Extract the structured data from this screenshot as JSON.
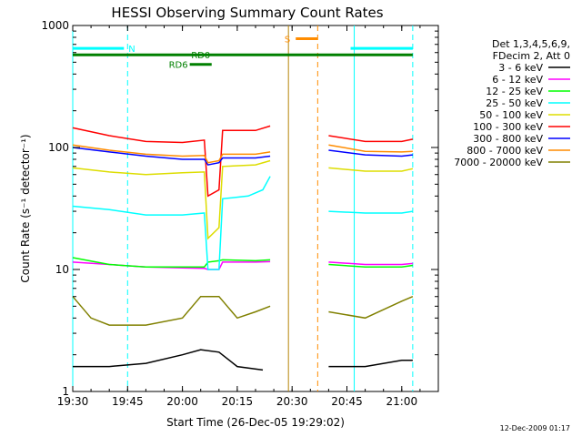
{
  "chart_data": {
    "type": "line",
    "title": "HESSI Observing Summary Count Rates",
    "xlabel": "Start Time (26-Dec-05 19:29:02)",
    "ylabel": "Count Rate (s⁻¹ detector⁻¹)",
    "yscale": "log",
    "ylim": [
      1,
      1000
    ],
    "xlim": [
      "19:30",
      "21:10"
    ],
    "x_ticks": [
      "19:30",
      "19:45",
      "20:00",
      "20:15",
      "20:30",
      "20:45",
      "21:00"
    ],
    "y_ticks": [
      "1",
      "10",
      "100",
      "1000"
    ],
    "legend_header": [
      "Det 1,3,4,5,6,9,",
      "FDecim 2, Att 0"
    ],
    "legend_position": "right",
    "footer": "12-Dec-2009 01:17",
    "series": [
      {
        "name": "3 - 6 keV",
        "color": "#000000",
        "points": [
          [
            "19:30",
            1.6
          ],
          [
            "19:40",
            1.6
          ],
          [
            "19:50",
            1.7
          ],
          [
            "20:00",
            2.0
          ],
          [
            "20:05",
            2.2
          ],
          [
            "20:10",
            2.1
          ],
          [
            "20:15",
            1.6
          ],
          [
            "20:22",
            1.5
          ],
          [
            "20:40",
            1.6
          ],
          [
            "20:50",
            1.6
          ],
          [
            "21:00",
            1.8
          ],
          [
            "21:03",
            1.8
          ]
        ]
      },
      {
        "name": "6 - 12 keV",
        "color": "#ff00ff",
        "points": [
          [
            "19:30",
            11.5
          ],
          [
            "19:40",
            11.0
          ],
          [
            "19:50",
            10.5
          ],
          [
            "20:00",
            10.3
          ],
          [
            "20:06",
            10.2
          ],
          [
            "20:07",
            10.0
          ],
          [
            "20:10",
            10.0
          ],
          [
            "20:11",
            11.5
          ],
          [
            "20:20",
            11.5
          ],
          [
            "20:24",
            11.6
          ],
          [
            "20:40",
            11.5
          ],
          [
            "20:50",
            11.0
          ],
          [
            "21:00",
            11.0
          ],
          [
            "21:03",
            11.2
          ]
        ]
      },
      {
        "name": "12 - 25 keV",
        "color": "#00ff00",
        "points": [
          [
            "19:30",
            12.5
          ],
          [
            "19:40",
            11.0
          ],
          [
            "19:50",
            10.5
          ],
          [
            "20:00",
            10.5
          ],
          [
            "20:06",
            10.5
          ],
          [
            "20:07",
            11.5
          ],
          [
            "20:10",
            11.8
          ],
          [
            "20:11",
            12.0
          ],
          [
            "20:20",
            11.8
          ],
          [
            "20:24",
            12.0
          ],
          [
            "20:40",
            11.0
          ],
          [
            "20:50",
            10.5
          ],
          [
            "21:00",
            10.5
          ],
          [
            "21:03",
            10.8
          ]
        ]
      },
      {
        "name": "25 - 50 keV",
        "color": "#00ffff",
        "points": [
          [
            "19:30",
            33
          ],
          [
            "19:40",
            31
          ],
          [
            "19:50",
            28
          ],
          [
            "20:00",
            28
          ],
          [
            "20:06",
            29
          ],
          [
            "20:07",
            10.0
          ],
          [
            "20:10",
            10.0
          ],
          [
            "20:11",
            38
          ],
          [
            "20:18",
            40
          ],
          [
            "20:22",
            45
          ],
          [
            "20:24",
            58
          ],
          [
            "20:40",
            30
          ],
          [
            "20:50",
            29
          ],
          [
            "21:00",
            29
          ],
          [
            "21:03",
            30
          ]
        ]
      },
      {
        "name": "50 - 100 keV",
        "color": "#dddd00",
        "points": [
          [
            "19:30",
            68
          ],
          [
            "19:40",
            63
          ],
          [
            "19:50",
            60
          ],
          [
            "20:00",
            62
          ],
          [
            "20:06",
            63
          ],
          [
            "20:07",
            18
          ],
          [
            "20:10",
            22
          ],
          [
            "20:11",
            70
          ],
          [
            "20:20",
            72
          ],
          [
            "20:24",
            78
          ],
          [
            "20:40",
            68
          ],
          [
            "20:50",
            64
          ],
          [
            "21:00",
            64
          ],
          [
            "21:03",
            67
          ]
        ]
      },
      {
        "name": "100 - 300 keV",
        "color": "#ff0000",
        "points": [
          [
            "19:30",
            145
          ],
          [
            "19:40",
            125
          ],
          [
            "19:50",
            112
          ],
          [
            "20:00",
            110
          ],
          [
            "20:06",
            115
          ],
          [
            "20:07",
            40
          ],
          [
            "20:10",
            45
          ],
          [
            "20:11",
            138
          ],
          [
            "20:20",
            138
          ],
          [
            "20:24",
            150
          ],
          [
            "20:40",
            125
          ],
          [
            "20:50",
            112
          ],
          [
            "21:00",
            112
          ],
          [
            "21:03",
            117
          ]
        ]
      },
      {
        "name": "300 - 800 keV",
        "color": "#0000ff",
        "points": [
          [
            "19:30",
            100
          ],
          [
            "19:40",
            92
          ],
          [
            "19:50",
            85
          ],
          [
            "20:00",
            80
          ],
          [
            "20:06",
            80
          ],
          [
            "20:07",
            72
          ],
          [
            "20:10",
            75
          ],
          [
            "20:11",
            82
          ],
          [
            "20:20",
            82
          ],
          [
            "20:24",
            85
          ],
          [
            "20:40",
            95
          ],
          [
            "20:50",
            87
          ],
          [
            "21:00",
            85
          ],
          [
            "21:03",
            87
          ]
        ]
      },
      {
        "name": "800 - 7000 keV",
        "color": "#ff8c00",
        "points": [
          [
            "19:30",
            105
          ],
          [
            "19:40",
            95
          ],
          [
            "19:50",
            88
          ],
          [
            "20:00",
            85
          ],
          [
            "20:06",
            86
          ],
          [
            "20:07",
            75
          ],
          [
            "20:10",
            78
          ],
          [
            "20:11",
            88
          ],
          [
            "20:20",
            88
          ],
          [
            "20:24",
            92
          ],
          [
            "20:40",
            105
          ],
          [
            "20:50",
            93
          ],
          [
            "21:00",
            92
          ],
          [
            "21:03",
            93
          ]
        ]
      },
      {
        "name": "7000 - 20000 keV",
        "color": "#808000",
        "points": [
          [
            "19:30",
            6.0
          ],
          [
            "19:35",
            4.0
          ],
          [
            "19:40",
            3.5
          ],
          [
            "19:50",
            3.5
          ],
          [
            "20:00",
            4.0
          ],
          [
            "20:05",
            6.0
          ],
          [
            "20:10",
            6.0
          ],
          [
            "20:15",
            4.0
          ],
          [
            "20:20",
            4.5
          ],
          [
            "20:24",
            5.0
          ],
          [
            "20:40",
            4.5
          ],
          [
            "20:50",
            4.0
          ],
          [
            "21:00",
            5.5
          ],
          [
            "21:03",
            6.0
          ]
        ]
      }
    ],
    "annotations": [
      {
        "label": "N",
        "color": "#00ffff",
        "segments": [
          [
            "19:30",
            "19:44"
          ],
          [
            "20:46",
            "21:03"
          ]
        ],
        "level": 650
      },
      {
        "label": "S",
        "color": "#ff8c00",
        "segments": [
          [
            "20:31",
            "20:37"
          ]
        ],
        "level": 780
      },
      {
        "label": "RD0",
        "color": "#008000",
        "segments": [
          [
            "19:30",
            "21:03"
          ]
        ],
        "level": 575
      },
      {
        "label": "RD6",
        "color": "#008000",
        "segments": [
          [
            "20:02",
            "20:08"
          ]
        ],
        "level": 480
      }
    ],
    "vertical_markers": [
      {
        "time": "19:30",
        "color": "#00ffff",
        "style": "solid"
      },
      {
        "time": "19:45",
        "color": "#00ffff",
        "style": "dashed"
      },
      {
        "time": "20:29",
        "color": "#b8860b",
        "style": "solid"
      },
      {
        "time": "20:37",
        "color": "#ff8c00",
        "style": "dashed"
      },
      {
        "time": "20:47",
        "color": "#00ffff",
        "style": "solid"
      },
      {
        "time": "21:03",
        "color": "#00ffff",
        "style": "dashed"
      }
    ],
    "data_gap": [
      "20:24",
      "20:39"
    ]
  }
}
